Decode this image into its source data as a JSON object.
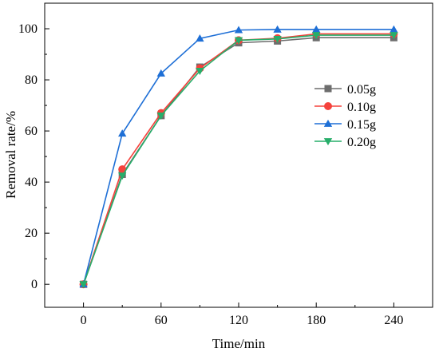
{
  "chart_data": {
    "type": "line",
    "title": "",
    "xlabel": "Time/min",
    "ylabel": "Removal rate/%",
    "xlim": [
      -30,
      270
    ],
    "ylim": [
      -9,
      110
    ],
    "xticks": [
      0,
      60,
      120,
      180,
      240
    ],
    "yticks": [
      0,
      20,
      40,
      60,
      80,
      100
    ],
    "legend_position": "right",
    "x": [
      0,
      30,
      60,
      90,
      120,
      150,
      180,
      240
    ],
    "series": [
      {
        "name": "0.05g",
        "color": "#6d6d6d",
        "marker": "square",
        "values": [
          0,
          43,
          66,
          85,
          94.5,
          95.2,
          96.5,
          96.5
        ]
      },
      {
        "name": "0.10g",
        "color": "#f5423c",
        "marker": "circle",
        "values": [
          0,
          45,
          67,
          84.5,
          95.5,
          96.3,
          98,
          98
        ]
      },
      {
        "name": "0.15g",
        "color": "#1e6fd6",
        "marker": "triangle-up",
        "values": [
          0,
          59,
          82.5,
          96.2,
          99.5,
          99.7,
          99.7,
          99.7
        ]
      },
      {
        "name": "0.20g",
        "color": "#27ae6a",
        "marker": "triangle-down",
        "values": [
          0,
          42.5,
          66,
          83.5,
          95.5,
          96,
          97.5,
          97.5
        ]
      }
    ]
  }
}
